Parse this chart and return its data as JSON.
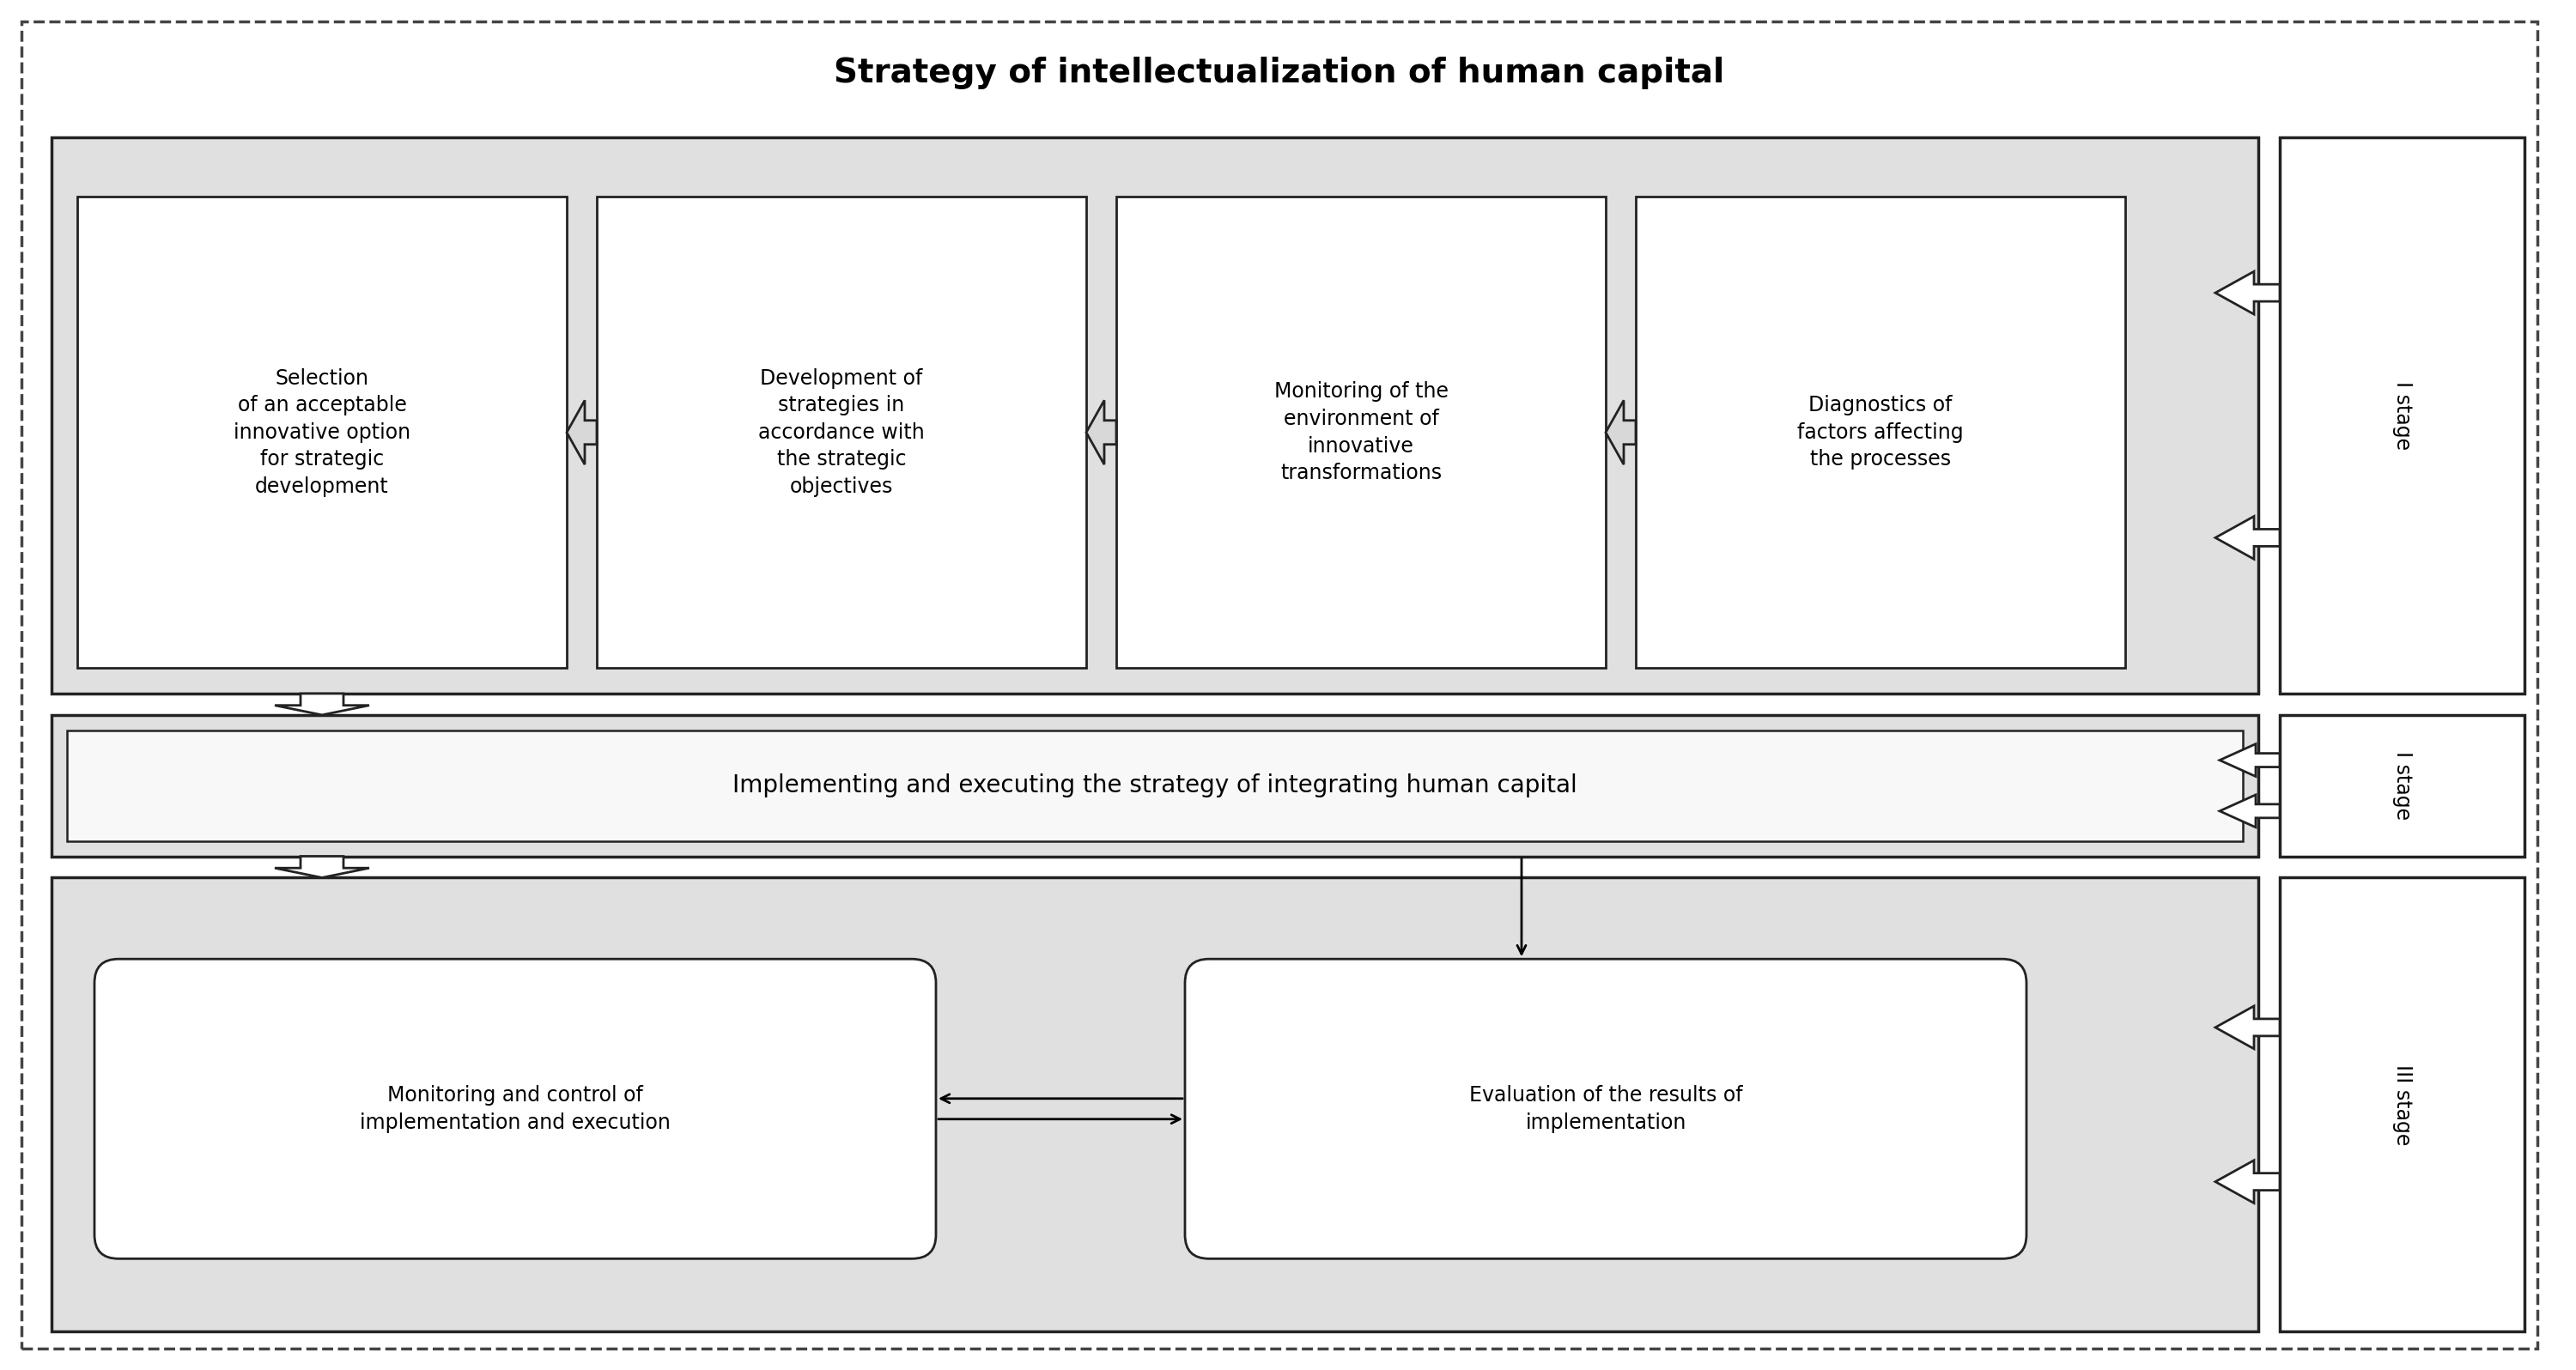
{
  "title": "Strategy of intellectualization of human capital",
  "title_fontsize": 28,
  "title_fontweight": "bold",
  "bg_color": "#ffffff",
  "box_fill_light": "#e0e0e0",
  "box_fill_white": "#ffffff",
  "box_border_color": "#222222",
  "text_color": "#000000",
  "stage_labels": [
    "I stage",
    "I stage",
    "III stage"
  ],
  "row1_boxes": [
    "Selection\nof an acceptable\ninnovative option\nfor strategic\ndevelopment",
    "Development of\nstrategies in\naccordance with\nthe strategic\nobjectives",
    "Monitoring of the\nenvironment of\ninnovative\ntransformations",
    "Diagnostics of\nfactors affecting\nthe processes"
  ],
  "row2_text": "Implementing and executing the strategy of integrating human capital",
  "row3_box1": "Monitoring and control of\nimplementation and execution",
  "row3_box2": "Evaluation of the results of\nimplementation",
  "font_size_boxes": 17,
  "font_size_row2": 20,
  "font_size_stage": 17,
  "font_size_title": 28
}
